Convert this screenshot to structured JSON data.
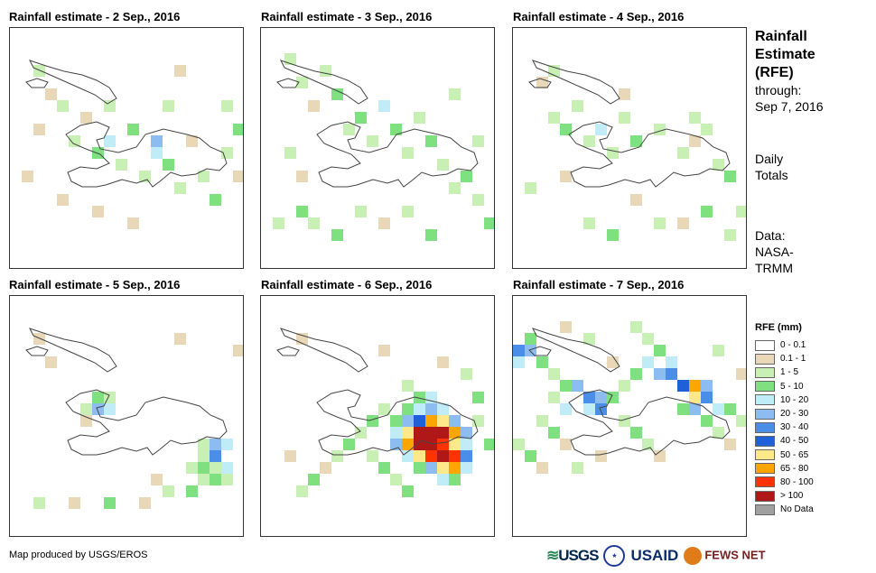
{
  "panels": [
    {
      "title": "Rainfall estimate - 2 Sep., 2016",
      "pattern": [
        [
          3,
          5,
          1
        ],
        [
          4,
          6,
          2
        ],
        [
          2,
          8,
          1
        ],
        [
          5,
          9,
          2
        ],
        [
          6,
          7,
          1
        ],
        [
          7,
          10,
          3
        ],
        [
          8,
          6,
          2
        ],
        [
          8,
          9,
          4
        ],
        [
          9,
          11,
          2
        ],
        [
          10,
          8,
          3
        ],
        [
          11,
          12,
          2
        ],
        [
          12,
          9,
          5
        ],
        [
          12,
          10,
          4
        ],
        [
          13,
          6,
          2
        ],
        [
          13,
          11,
          3
        ],
        [
          14,
          13,
          2
        ],
        [
          15,
          9,
          1
        ],
        [
          16,
          12,
          2
        ],
        [
          17,
          14,
          3
        ],
        [
          18,
          10,
          2
        ],
        [
          19,
          12,
          1
        ],
        [
          20,
          9,
          2
        ],
        [
          4,
          14,
          1
        ],
        [
          7,
          15,
          1
        ],
        [
          10,
          16,
          1
        ],
        [
          2,
          3,
          2
        ],
        [
          14,
          3,
          1
        ],
        [
          1,
          12,
          1
        ],
        [
          18,
          6,
          2
        ],
        [
          19,
          8,
          3
        ]
      ]
    },
    {
      "title": "Rainfall estimate - 3 Sep., 2016",
      "pattern": [
        [
          2,
          2,
          2
        ],
        [
          3,
          4,
          2
        ],
        [
          4,
          6,
          1
        ],
        [
          5,
          3,
          2
        ],
        [
          6,
          5,
          3
        ],
        [
          7,
          8,
          2
        ],
        [
          8,
          7,
          3
        ],
        [
          9,
          9,
          2
        ],
        [
          10,
          6,
          4
        ],
        [
          11,
          8,
          3
        ],
        [
          12,
          10,
          2
        ],
        [
          13,
          7,
          2
        ],
        [
          14,
          9,
          3
        ],
        [
          15,
          11,
          2
        ],
        [
          16,
          13,
          2
        ],
        [
          17,
          12,
          3
        ],
        [
          18,
          14,
          2
        ],
        [
          3,
          15,
          3
        ],
        [
          4,
          16,
          2
        ],
        [
          6,
          17,
          3
        ],
        [
          8,
          15,
          2
        ],
        [
          10,
          16,
          1
        ],
        [
          12,
          15,
          2
        ],
        [
          14,
          17,
          3
        ],
        [
          2,
          10,
          2
        ],
        [
          3,
          12,
          1
        ],
        [
          16,
          5,
          2
        ],
        [
          18,
          9,
          2
        ],
        [
          19,
          16,
          3
        ],
        [
          1,
          16,
          2
        ]
      ]
    },
    {
      "title": "Rainfall estimate - 4 Sep., 2016",
      "pattern": [
        [
          3,
          7,
          2
        ],
        [
          4,
          8,
          3
        ],
        [
          5,
          6,
          2
        ],
        [
          6,
          9,
          2
        ],
        [
          7,
          8,
          4
        ],
        [
          8,
          10,
          2
        ],
        [
          9,
          7,
          2
        ],
        [
          10,
          9,
          3
        ],
        [
          12,
          8,
          2
        ],
        [
          14,
          10,
          2
        ],
        [
          15,
          9,
          1
        ],
        [
          17,
          11,
          2
        ],
        [
          18,
          12,
          3
        ],
        [
          2,
          4,
          1
        ],
        [
          3,
          3,
          2
        ],
        [
          10,
          14,
          1
        ],
        [
          12,
          16,
          2
        ],
        [
          14,
          16,
          1
        ],
        [
          16,
          15,
          3
        ],
        [
          18,
          17,
          2
        ],
        [
          19,
          15,
          2
        ],
        [
          6,
          16,
          2
        ],
        [
          8,
          17,
          3
        ],
        [
          4,
          12,
          1
        ],
        [
          1,
          13,
          2
        ],
        [
          15,
          7,
          2
        ],
        [
          16,
          8,
          2
        ],
        [
          9,
          5,
          1
        ]
      ]
    },
    {
      "title": "Rainfall estimate - 5 Sep., 2016",
      "pattern": [
        [
          6,
          9,
          2
        ],
        [
          7,
          8,
          3
        ],
        [
          7,
          9,
          5
        ],
        [
          8,
          9,
          4
        ],
        [
          8,
          8,
          2
        ],
        [
          6,
          10,
          1
        ],
        [
          16,
          12,
          2
        ],
        [
          17,
          12,
          5
        ],
        [
          17,
          13,
          6
        ],
        [
          18,
          12,
          4
        ],
        [
          16,
          13,
          2
        ],
        [
          15,
          14,
          2
        ],
        [
          16,
          14,
          3
        ],
        [
          17,
          14,
          2
        ],
        [
          18,
          14,
          4
        ],
        [
          17,
          15,
          3
        ],
        [
          18,
          15,
          2
        ],
        [
          16,
          15,
          2
        ],
        [
          15,
          16,
          3
        ],
        [
          12,
          15,
          1
        ],
        [
          13,
          16,
          2
        ],
        [
          11,
          17,
          1
        ],
        [
          8,
          17,
          3
        ],
        [
          5,
          17,
          1
        ],
        [
          2,
          17,
          2
        ],
        [
          2,
          3,
          1
        ],
        [
          14,
          3,
          1
        ],
        [
          19,
          4,
          1
        ],
        [
          3,
          5,
          1
        ]
      ]
    },
    {
      "title": "Rainfall estimate - 6 Sep., 2016",
      "pattern": [
        [
          12,
          7,
          2
        ],
        [
          13,
          8,
          3
        ],
        [
          14,
          8,
          4
        ],
        [
          12,
          9,
          3
        ],
        [
          13,
          9,
          4
        ],
        [
          14,
          9,
          5
        ],
        [
          15,
          9,
          4
        ],
        [
          11,
          10,
          3
        ],
        [
          12,
          10,
          5
        ],
        [
          13,
          10,
          7
        ],
        [
          14,
          10,
          9
        ],
        [
          15,
          10,
          8
        ],
        [
          16,
          10,
          5
        ],
        [
          11,
          11,
          4
        ],
        [
          12,
          11,
          8
        ],
        [
          13,
          11,
          11
        ],
        [
          14,
          11,
          11
        ],
        [
          15,
          11,
          11
        ],
        [
          16,
          11,
          9
        ],
        [
          17,
          11,
          5
        ],
        [
          11,
          12,
          5
        ],
        [
          12,
          12,
          9
        ],
        [
          13,
          12,
          11
        ],
        [
          14,
          12,
          11
        ],
        [
          15,
          12,
          10
        ],
        [
          16,
          12,
          8
        ],
        [
          17,
          12,
          4
        ],
        [
          12,
          13,
          4
        ],
        [
          13,
          13,
          8
        ],
        [
          14,
          13,
          10
        ],
        [
          15,
          13,
          11
        ],
        [
          16,
          13,
          10
        ],
        [
          17,
          13,
          6
        ],
        [
          13,
          14,
          3
        ],
        [
          14,
          14,
          5
        ],
        [
          15,
          14,
          8
        ],
        [
          16,
          14,
          9
        ],
        [
          17,
          14,
          4
        ],
        [
          15,
          15,
          4
        ],
        [
          16,
          15,
          3
        ],
        [
          10,
          9,
          2
        ],
        [
          9,
          10,
          3
        ],
        [
          8,
          11,
          2
        ],
        [
          7,
          12,
          3
        ],
        [
          6,
          13,
          2
        ],
        [
          5,
          14,
          1
        ],
        [
          4,
          15,
          3
        ],
        [
          3,
          16,
          2
        ],
        [
          2,
          13,
          1
        ],
        [
          9,
          13,
          2
        ],
        [
          10,
          14,
          3
        ],
        [
          11,
          15,
          2
        ],
        [
          12,
          16,
          3
        ],
        [
          18,
          8,
          3
        ],
        [
          18,
          10,
          2
        ],
        [
          19,
          12,
          3
        ],
        [
          17,
          6,
          2
        ],
        [
          15,
          5,
          1
        ],
        [
          10,
          4,
          1
        ],
        [
          3,
          3,
          1
        ]
      ]
    },
    {
      "title": "Rainfall estimate - 7 Sep., 2016",
      "pattern": [
        [
          0,
          4,
          6
        ],
        [
          1,
          4,
          5
        ],
        [
          0,
          5,
          4
        ],
        [
          1,
          3,
          3
        ],
        [
          2,
          5,
          3
        ],
        [
          3,
          6,
          2
        ],
        [
          4,
          7,
          3
        ],
        [
          5,
          7,
          5
        ],
        [
          6,
          8,
          6
        ],
        [
          7,
          8,
          5
        ],
        [
          6,
          9,
          4
        ],
        [
          7,
          9,
          6
        ],
        [
          8,
          8,
          3
        ],
        [
          9,
          7,
          2
        ],
        [
          10,
          6,
          3
        ],
        [
          11,
          5,
          4
        ],
        [
          12,
          6,
          5
        ],
        [
          13,
          6,
          6
        ],
        [
          14,
          7,
          7
        ],
        [
          15,
          7,
          9
        ],
        [
          15,
          8,
          8
        ],
        [
          16,
          8,
          6
        ],
        [
          16,
          7,
          5
        ],
        [
          17,
          9,
          4
        ],
        [
          18,
          9,
          3
        ],
        [
          13,
          5,
          4
        ],
        [
          12,
          4,
          3
        ],
        [
          11,
          3,
          2
        ],
        [
          10,
          2,
          2
        ],
        [
          14,
          9,
          3
        ],
        [
          15,
          9,
          5
        ],
        [
          16,
          10,
          3
        ],
        [
          9,
          10,
          2
        ],
        [
          10,
          11,
          3
        ],
        [
          11,
          12,
          2
        ],
        [
          12,
          13,
          1
        ],
        [
          2,
          10,
          2
        ],
        [
          3,
          11,
          3
        ],
        [
          4,
          12,
          1
        ],
        [
          0,
          12,
          2
        ],
        [
          1,
          13,
          3
        ],
        [
          2,
          14,
          1
        ],
        [
          5,
          14,
          2
        ],
        [
          7,
          13,
          1
        ],
        [
          3,
          8,
          2
        ],
        [
          4,
          9,
          4
        ],
        [
          17,
          11,
          2
        ],
        [
          18,
          12,
          1
        ],
        [
          19,
          10,
          2
        ],
        [
          8,
          5,
          1
        ],
        [
          6,
          3,
          2
        ],
        [
          4,
          2,
          1
        ],
        [
          17,
          4,
          2
        ],
        [
          19,
          6,
          1
        ]
      ]
    }
  ],
  "side": {
    "title_line1": "Rainfall",
    "title_line2": "Estimate",
    "title_line3": "(RFE)",
    "through_label": "through:",
    "through_date": "Sep 7, 2016",
    "daily_line1": "Daily",
    "daily_line2": "Totals",
    "data_line1": "Data:",
    "data_line2": "NASA-",
    "data_line3": "TRMM"
  },
  "legend": {
    "title": "RFE (mm)",
    "items": [
      {
        "label": "0 - 0.1",
        "color": "#ffffff"
      },
      {
        "label": "0.1 - 1",
        "color": "#e8d8b8"
      },
      {
        "label": "1 - 5",
        "color": "#c8f0b4"
      },
      {
        "label": "5 - 10",
        "color": "#7ee07e"
      },
      {
        "label": "10 - 20",
        "color": "#c0ecf8"
      },
      {
        "label": "20 - 30",
        "color": "#8cbcf0"
      },
      {
        "label": "30 - 40",
        "color": "#4a8ee8"
      },
      {
        "label": "40 - 50",
        "color": "#1f5fd8"
      },
      {
        "label": "50 - 65",
        "color": "#ffe88a"
      },
      {
        "label": "65 - 80",
        "color": "#ffa500"
      },
      {
        "label": "80 - 100",
        "color": "#ff3300"
      },
      {
        "label": "> 100",
        "color": "#b01818"
      },
      {
        "label": "No Data",
        "color": "#a0a0a0"
      }
    ]
  },
  "footer": {
    "credit": "Map produced by USGS/EROS",
    "logo_usgs": "USGS",
    "logo_usaid": "USAID",
    "logo_fews": "FEWS NET"
  }
}
